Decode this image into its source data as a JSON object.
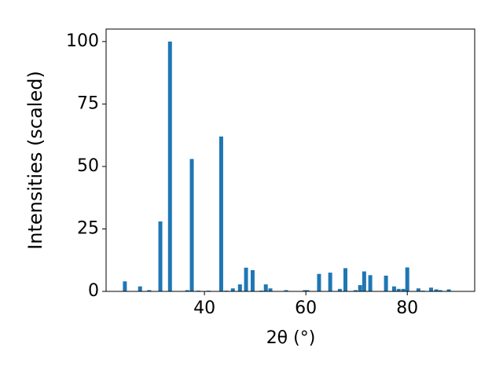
{
  "chart_data": {
    "type": "bar",
    "x": [
      24.3,
      27.3,
      29.1,
      31.3,
      33.2,
      36.6,
      37.5,
      38.8,
      40.8,
      43.3,
      44.3,
      45.6,
      47.0,
      48.2,
      49.5,
      51.2,
      52.1,
      53.0,
      56.1,
      59.8,
      60.3,
      62.6,
      64.8,
      66.7,
      67.8,
      69.8,
      70.7,
      71.5,
      72.7,
      75.8,
      77.4,
      78.3,
      79.2,
      80.0,
      82.2,
      83.1,
      84.7,
      85.7,
      86.5,
      88.2
    ],
    "values": [
      4,
      2,
      0.5,
      28,
      100,
      0.5,
      53,
      0.3,
      0.3,
      62,
      0.3,
      1.2,
      2.8,
      9.5,
      8.5,
      0.3,
      2.8,
      1.2,
      0.5,
      0.5,
      0.5,
      7,
      7.5,
      1,
      9.3,
      0.5,
      2.5,
      8,
      6.5,
      6.3,
      2,
      1,
      1,
      9.6,
      1.2,
      0.3,
      1.5,
      0.8,
      0.5,
      0.8
    ],
    "color": "#1f77b4",
    "xlabel": "2θ (°)",
    "ylabel": "Intensities (scaled)",
    "xlim": [
      20.6,
      93.3
    ],
    "xticks": [
      40,
      60,
      80
    ],
    "ylim": [
      0,
      105
    ],
    "yticks": [
      0,
      25,
      50,
      75,
      100
    ]
  }
}
